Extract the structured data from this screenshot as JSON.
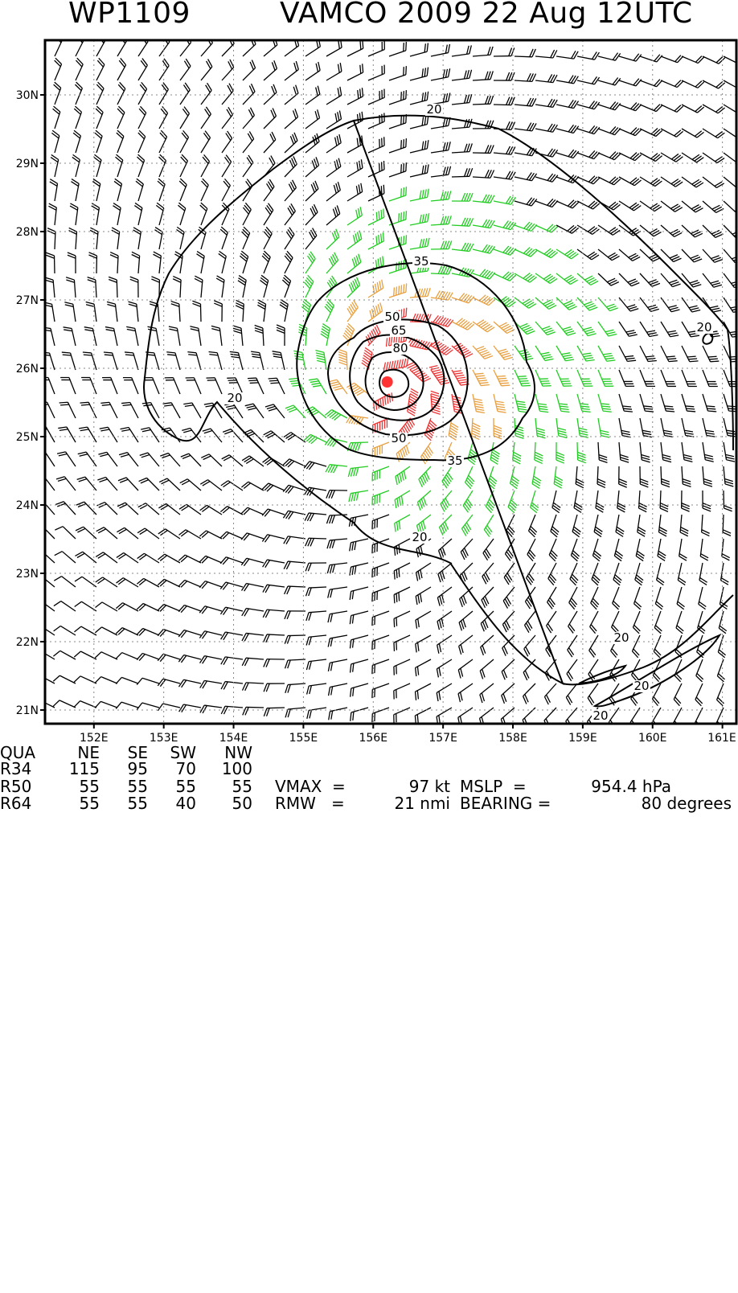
{
  "header": {
    "storm_id": "WP1109",
    "title": "VAMCO 2009 22 Aug 12UTC"
  },
  "map": {
    "lon_ticks": [
      "152E",
      "153E",
      "154E",
      "155E",
      "156E",
      "157E",
      "158E",
      "159E",
      "160E",
      "161E"
    ],
    "lat_ticks": [
      "21N",
      "22N",
      "23N",
      "24N",
      "25N",
      "26N",
      "27N",
      "28N",
      "29N",
      "30N"
    ],
    "lon_values": [
      152,
      153,
      154,
      155,
      156,
      157,
      158,
      159,
      160,
      161
    ],
    "lat_values": [
      21,
      22,
      23,
      24,
      25,
      26,
      27,
      28,
      29,
      30
    ],
    "lon_range": [
      151.3,
      161.2
    ],
    "lat_range": [
      20.8,
      30.8
    ],
    "storm_center": {
      "lon": 156.2,
      "lat": 25.8
    },
    "colors": {
      "below_34kt": "#000000",
      "34_to_50kt": "#22cc22",
      "50_to_64kt": "#e8a040",
      "above_64kt": "#ee3333",
      "center": "#ff3333"
    },
    "contours": [
      {
        "value": "20",
        "labels": [
          "20",
          "20",
          "20",
          "20",
          "20",
          "20"
        ]
      },
      {
        "value": "35",
        "labels": [
          "35",
          "35"
        ]
      },
      {
        "value": "50",
        "labels": [
          "50",
          "50"
        ]
      },
      {
        "value": "65",
        "labels": [
          "65"
        ]
      },
      {
        "value": "80",
        "labels": [
          "80"
        ]
      }
    ]
  },
  "radii_table": {
    "header": [
      "QUA",
      "NE",
      "SE",
      "SW",
      "NW"
    ],
    "rows": [
      {
        "label": "R34",
        "ne": "115",
        "se": "95",
        "sw": "70",
        "nw": "100"
      },
      {
        "label": "R50",
        "ne": "55",
        "se": "55",
        "sw": "55",
        "nw": "55"
      },
      {
        "label": "R64",
        "ne": "55",
        "se": "55",
        "sw": "40",
        "nw": "50"
      }
    ]
  },
  "stats": {
    "vmax_label": "VMAX  =",
    "vmax_value": "97 kt",
    "mslp_label": "MSLP  =",
    "mslp_value": "954.4 hPa",
    "rmw_label": "RMW   =",
    "rmw_value": "21 nmi",
    "bearing_label": "BEARING =",
    "bearing_value": "80 degrees"
  }
}
